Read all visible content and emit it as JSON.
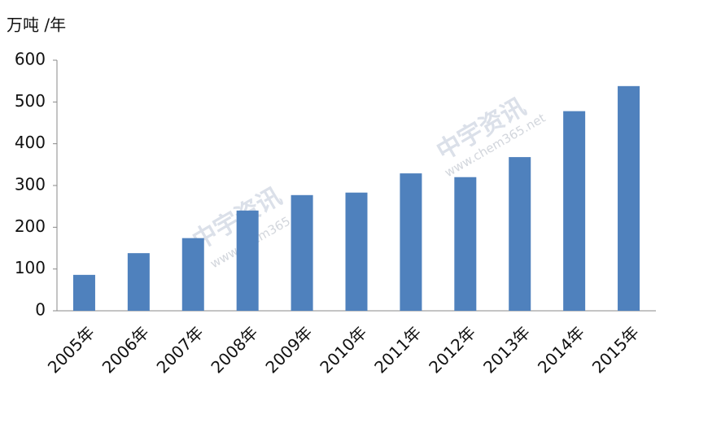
{
  "chart_data": {
    "type": "bar",
    "y_label": "万吨 /年",
    "categories": [
      "2005年",
      "2006年",
      "2007年",
      "2008年",
      "2009年",
      "2010年",
      "2011年",
      "2012年",
      "2013年",
      "2014年",
      "2015年"
    ],
    "values": [
      86,
      138,
      174,
      240,
      277,
      283,
      329,
      320,
      368,
      478,
      538
    ],
    "color": "#4f81bd",
    "ylim": [
      0,
      600
    ],
    "yticks": [
      0,
      100,
      200,
      300,
      400,
      500,
      600
    ],
    "grid": false,
    "watermarks": [
      "中宇资讯",
      "www.chem365.net",
      "中宇资讯",
      "www.chem365.net"
    ]
  }
}
